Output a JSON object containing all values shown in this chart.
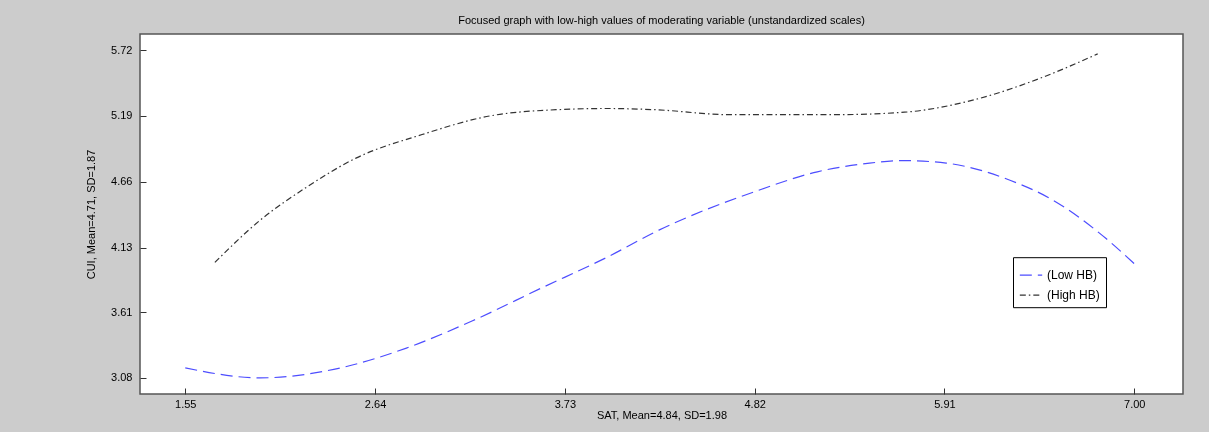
{
  "chart_data": {
    "type": "line",
    "title": "Focused graph with low-high values of moderating variable (unstandardized scales)",
    "xlabel": "SAT, Mean=4.84, SD=1.98",
    "ylabel": "CUI, Mean=4.71, SD=1.87",
    "xlim": [
      1.29,
      7.28
    ],
    "xticks": [
      1.55,
      2.64,
      3.73,
      4.82,
      5.91,
      {
        "value": 7,
        "label": "7.00"
      }
    ],
    "ylim": [
      2.95,
      5.85
    ],
    "yticks": [
      3.08,
      3.61,
      4.13,
      4.66,
      5.19,
      5.72
    ],
    "grid": false,
    "legend": "right",
    "series": [
      {
        "name": "(Low HB)",
        "color": "#4d4dff",
        "line_style": "dashed",
        "x": [
          1.55,
          1.98,
          2.44,
          2.82,
          3.2,
          3.59,
          3.97,
          4.27,
          4.82,
          5.18,
          5.48,
          5.68,
          5.92,
          6.29,
          6.51,
          6.84,
          7.0
        ],
        "values": [
          3.16,
          3.08,
          3.16,
          3.32,
          3.54,
          3.8,
          4.05,
          4.27,
          4.58,
          4.74,
          4.81,
          4.83,
          4.81,
          4.67,
          4.53,
          4.2,
          4.0
        ]
      },
      {
        "name": "(High HB)",
        "color": "#333333",
        "line_style": "dashdot",
        "x": [
          1.72,
          1.98,
          2.24,
          2.53,
          2.91,
          3.3,
          3.68,
          3.97,
          4.25,
          4.68,
          5.28,
          5.68,
          6.08,
          6.49,
          6.79
        ],
        "values": [
          4.01,
          4.35,
          4.61,
          4.85,
          5.04,
          5.19,
          5.24,
          5.25,
          5.24,
          5.2,
          5.2,
          5.22,
          5.32,
          5.51,
          5.69
        ]
      }
    ]
  }
}
